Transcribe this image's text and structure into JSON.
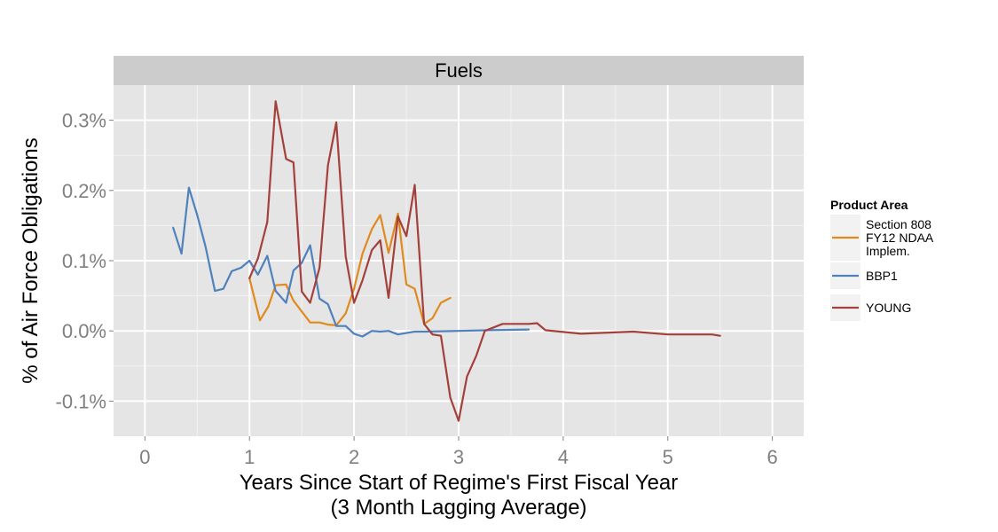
{
  "chart_data": {
    "type": "line",
    "facet_title": "Fuels",
    "xlabel": "Years Since Start of Regime's First Fiscal Year",
    "xlabel_sub": "(3 Month Lagging Average)",
    "ylabel": "% of Air Force Obligations",
    "xlim": [
      -0.3,
      6.3
    ],
    "ylim": [
      -0.15,
      0.35
    ],
    "x_ticks": [
      0,
      1,
      2,
      3,
      4,
      5,
      6
    ],
    "x_tick_labels": [
      "0",
      "1",
      "2",
      "3",
      "4",
      "5",
      "6"
    ],
    "y_ticks": [
      -0.1,
      0.0,
      0.1,
      0.2,
      0.3
    ],
    "y_tick_labels": [
      "-0.1%",
      "0.0%",
      "0.1%",
      "0.2%",
      "0.3%"
    ],
    "grid": true,
    "legend_title": "Product Area",
    "legend_position": "right",
    "series": [
      {
        "name": "Section 808 FY12 NDAA Implem.",
        "label_lines": [
          "Section 808",
          "FY12 NDAA",
          "Implem."
        ],
        "color": "#E08A1E",
        "x": [
          1.0,
          1.1,
          1.18,
          1.25,
          1.35,
          1.42,
          1.58,
          1.67,
          1.75,
          1.83,
          1.92,
          2.0,
          2.08,
          2.17,
          2.25,
          2.33,
          2.42,
          2.5,
          2.58,
          2.67,
          2.75,
          2.83,
          2.92
        ],
        "y": [
          0.075,
          0.015,
          0.035,
          0.065,
          0.066,
          0.043,
          0.012,
          0.012,
          0.009,
          0.008,
          0.025,
          0.06,
          0.11,
          0.145,
          0.165,
          0.111,
          0.167,
          0.066,
          0.06,
          0.01,
          0.018,
          0.04,
          0.047
        ]
      },
      {
        "name": "BBP1",
        "label_lines": [
          "BBP1"
        ],
        "color": "#4F81BD",
        "x": [
          0.27,
          0.35,
          0.42,
          0.5,
          0.58,
          0.67,
          0.75,
          0.83,
          0.92,
          1.0,
          1.08,
          1.17,
          1.25,
          1.35,
          1.42,
          1.5,
          1.58,
          1.67,
          1.75,
          1.83,
          1.92,
          2.0,
          2.08,
          2.17,
          2.25,
          2.33,
          2.42,
          2.5,
          2.58,
          2.67,
          3.0,
          3.3,
          3.67
        ],
        "y": [
          0.147,
          0.11,
          0.204,
          0.165,
          0.12,
          0.057,
          0.06,
          0.085,
          0.09,
          0.1,
          0.08,
          0.107,
          0.057,
          0.04,
          0.086,
          0.097,
          0.122,
          0.046,
          0.038,
          0.007,
          0.007,
          -0.004,
          -0.008,
          0.0,
          -0.001,
          0.0,
          -0.005,
          -0.003,
          -0.001,
          -0.001,
          0.0,
          0.001,
          0.002
        ]
      },
      {
        "name": "YOUNG",
        "label_lines": [
          "YOUNG"
        ],
        "color": "#A4403C",
        "x": [
          1.0,
          1.08,
          1.17,
          1.25,
          1.35,
          1.42,
          1.5,
          1.58,
          1.67,
          1.75,
          1.83,
          1.92,
          2.0,
          2.08,
          2.17,
          2.25,
          2.33,
          2.42,
          2.5,
          2.58,
          2.67,
          2.75,
          2.83,
          2.92,
          3.0,
          3.08,
          3.17,
          3.25,
          3.42,
          3.67,
          3.75,
          3.83,
          4.17,
          4.67,
          5.0,
          5.42,
          5.5
        ],
        "y": [
          0.075,
          0.103,
          0.155,
          0.327,
          0.245,
          0.24,
          0.056,
          0.04,
          0.09,
          0.236,
          0.297,
          0.106,
          0.04,
          0.072,
          0.115,
          0.129,
          0.047,
          0.163,
          0.135,
          0.208,
          0.01,
          -0.005,
          -0.007,
          -0.095,
          -0.128,
          -0.065,
          -0.035,
          0.0,
          0.01,
          0.01,
          0.011,
          0.001,
          -0.004,
          -0.001,
          -0.005,
          -0.005,
          -0.007
        ]
      }
    ]
  }
}
